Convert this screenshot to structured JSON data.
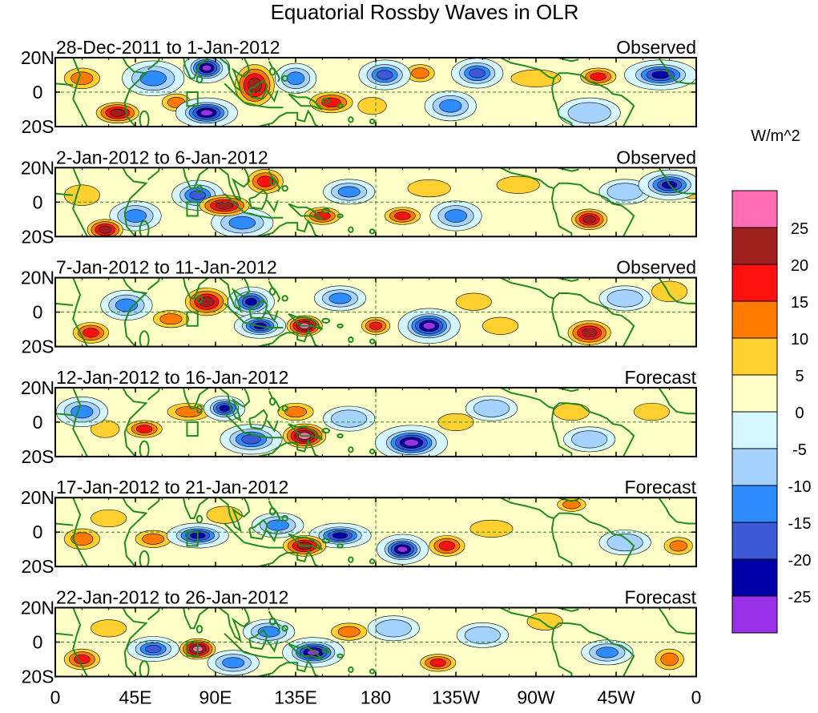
{
  "chart_data": {
    "type": "heatmap",
    "title": "Equatorial Rossby Waves in OLR",
    "colorbar": {
      "units": "W/m^2",
      "levels": [
        30,
        25,
        20,
        15,
        10,
        5,
        0,
        -5,
        -10,
        -15,
        -20,
        -25,
        -30
      ],
      "colors": [
        "#ff6eb4",
        "#a02020",
        "#ff1010",
        "#ff7a00",
        "#ffd030",
        "#ffffc8",
        "#d4f6ff",
        "#a6d2ff",
        "#2e8cff",
        "#3c5ad8",
        "#0000a8",
        "#9a30e8"
      ],
      "tick_labels": [
        "25",
        "20",
        "15",
        "10",
        "5",
        "0",
        "-5",
        "-10",
        "-15",
        "-20",
        "-25"
      ]
    },
    "x_ticks": [
      "0",
      "45E",
      "90E",
      "135E",
      "180",
      "135W",
      "90W",
      "45W",
      "0"
    ],
    "x_tick_values": [
      0,
      45,
      90,
      135,
      180,
      225,
      270,
      315,
      360
    ],
    "y_ticks": [
      "20N",
      "0",
      "20S"
    ],
    "y_tick_values": [
      20,
      0,
      -20
    ],
    "xlim": [
      0,
      360
    ],
    "ylim": [
      -20,
      20
    ],
    "panels": [
      {
        "period": "28-Dec-2011 to 1-Jan-2012",
        "kind": "Observed",
        "anomalies": [
          {
            "lon": 35,
            "lat": -12,
            "v": 22,
            "dx": 12,
            "dy": 6
          },
          {
            "lon": 15,
            "lat": 8,
            "v": 12,
            "dx": 10,
            "dy": 6
          },
          {
            "lon": 55,
            "lat": 8,
            "v": -12,
            "dx": 12,
            "dy": 7
          },
          {
            "lon": 68,
            "lat": -6,
            "v": 10,
            "dx": 8,
            "dy": 5
          },
          {
            "lon": 85,
            "lat": 14,
            "v": -26,
            "dx": 9,
            "dy": 6
          },
          {
            "lon": 85,
            "lat": -12,
            "v": -26,
            "dx": 12,
            "dy": 6
          },
          {
            "lon": 112,
            "lat": 4,
            "v": 22,
            "dx": 11,
            "dy": 12
          },
          {
            "lon": 135,
            "lat": 8,
            "v": -14,
            "dx": 8,
            "dy": 6
          },
          {
            "lon": 155,
            "lat": -6,
            "v": 18,
            "dx": 12,
            "dy": 6
          },
          {
            "lon": 178,
            "lat": -8,
            "v": 8,
            "dx": 8,
            "dy": 5
          },
          {
            "lon": 185,
            "lat": 10,
            "v": -18,
            "dx": 10,
            "dy": 6
          },
          {
            "lon": 205,
            "lat": 11,
            "v": 10,
            "dx": 8,
            "dy": 5
          },
          {
            "lon": 222,
            "lat": -8,
            "v": -12,
            "dx": 10,
            "dy": 6
          },
          {
            "lon": 237,
            "lat": 11,
            "v": -18,
            "dx": 10,
            "dy": 6
          },
          {
            "lon": 270,
            "lat": 8,
            "v": 6,
            "dx": 14,
            "dy": 5
          },
          {
            "lon": 305,
            "lat": 9,
            "v": 15,
            "dx": 10,
            "dy": 5
          },
          {
            "lon": 340,
            "lat": 10,
            "v": -22,
            "dx": 14,
            "dy": 6
          },
          {
            "lon": 300,
            "lat": -12,
            "v": -8,
            "dx": 12,
            "dy": 6
          }
        ]
      },
      {
        "period": "2-Jan-2012 to 6-Jan-2012",
        "kind": "Observed",
        "anomalies": [
          {
            "lon": 28,
            "lat": -16,
            "v": 24,
            "dx": 10,
            "dy": 6
          },
          {
            "lon": 15,
            "lat": 4,
            "v": 8,
            "dx": 10,
            "dy": 6
          },
          {
            "lon": 45,
            "lat": -8,
            "v": -14,
            "dx": 10,
            "dy": 6
          },
          {
            "lon": 80,
            "lat": 4,
            "v": -18,
            "dx": 10,
            "dy": 6
          },
          {
            "lon": 95,
            "lat": -2,
            "v": 20,
            "dx": 14,
            "dy": 6
          },
          {
            "lon": 118,
            "lat": 12,
            "v": 18,
            "dx": 10,
            "dy": 7
          },
          {
            "lon": 105,
            "lat": -12,
            "v": -12,
            "dx": 12,
            "dy": 6
          },
          {
            "lon": 150,
            "lat": -8,
            "v": 15,
            "dx": 10,
            "dy": 5
          },
          {
            "lon": 165,
            "lat": 6,
            "v": -10,
            "dx": 10,
            "dy": 5
          },
          {
            "lon": 195,
            "lat": -8,
            "v": 18,
            "dx": 10,
            "dy": 5
          },
          {
            "lon": 225,
            "lat": -8,
            "v": -14,
            "dx": 10,
            "dy": 6
          },
          {
            "lon": 210,
            "lat": 8,
            "v": 8,
            "dx": 12,
            "dy": 5
          },
          {
            "lon": 260,
            "lat": 10,
            "v": 5,
            "dx": 12,
            "dy": 5
          },
          {
            "lon": 300,
            "lat": -10,
            "v": 20,
            "dx": 10,
            "dy": 6
          },
          {
            "lon": 320,
            "lat": 6,
            "v": -8,
            "dx": 10,
            "dy": 5
          },
          {
            "lon": 345,
            "lat": 10,
            "v": -22,
            "dx": 12,
            "dy": 6
          },
          {
            "lon": 358,
            "lat": 8,
            "v": 12,
            "dx": 8,
            "dy": 6
          }
        ]
      },
      {
        "period": "7-Jan-2012 to 11-Jan-2012",
        "kind": "Observed",
        "anomalies": [
          {
            "lon": 20,
            "lat": -12,
            "v": 16,
            "dx": 10,
            "dy": 6
          },
          {
            "lon": 40,
            "lat": 4,
            "v": -12,
            "dx": 10,
            "dy": 6
          },
          {
            "lon": 65,
            "lat": -4,
            "v": 14,
            "dx": 10,
            "dy": 5
          },
          {
            "lon": 85,
            "lat": 6,
            "v": 22,
            "dx": 12,
            "dy": 8
          },
          {
            "lon": 110,
            "lat": 6,
            "v": -22,
            "dx": 9,
            "dy": 6
          },
          {
            "lon": 115,
            "lat": -8,
            "v": -22,
            "dx": 10,
            "dy": 5
          },
          {
            "lon": 140,
            "lat": -8,
            "v": 26,
            "dx": 10,
            "dy": 6
          },
          {
            "lon": 160,
            "lat": 8,
            "v": -10,
            "dx": 10,
            "dy": 5
          },
          {
            "lon": 180,
            "lat": -8,
            "v": 16,
            "dx": 8,
            "dy": 5
          },
          {
            "lon": 210,
            "lat": -8,
            "v": -26,
            "dx": 12,
            "dy": 7
          },
          {
            "lon": 235,
            "lat": 6,
            "v": 8,
            "dx": 10,
            "dy": 5
          },
          {
            "lon": 250,
            "lat": -8,
            "v": 6,
            "dx": 10,
            "dy": 5
          },
          {
            "lon": 300,
            "lat": -12,
            "v": 22,
            "dx": 12,
            "dy": 7
          },
          {
            "lon": 320,
            "lat": 8,
            "v": -8,
            "dx": 10,
            "dy": 5
          },
          {
            "lon": 345,
            "lat": 12,
            "v": 8,
            "dx": 10,
            "dy": 6
          }
        ]
      },
      {
        "period": "12-Jan-2012 to 16-Jan-2012",
        "kind": "Forecast",
        "anomalies": [
          {
            "lon": 15,
            "lat": 6,
            "v": -12,
            "dx": 10,
            "dy": 6
          },
          {
            "lon": 28,
            "lat": -4,
            "v": 6,
            "dx": 8,
            "dy": 5
          },
          {
            "lon": 50,
            "lat": -4,
            "v": 18,
            "dx": 10,
            "dy": 5
          },
          {
            "lon": 75,
            "lat": 6,
            "v": 12,
            "dx": 12,
            "dy": 5
          },
          {
            "lon": 95,
            "lat": 8,
            "v": -24,
            "dx": 8,
            "dy": 5
          },
          {
            "lon": 110,
            "lat": -10,
            "v": -16,
            "dx": 12,
            "dy": 6
          },
          {
            "lon": 140,
            "lat": -8,
            "v": 26,
            "dx": 12,
            "dy": 7
          },
          {
            "lon": 135,
            "lat": 6,
            "v": 10,
            "dx": 10,
            "dy": 5
          },
          {
            "lon": 165,
            "lat": 2,
            "v": -8,
            "dx": 10,
            "dy": 5
          },
          {
            "lon": 200,
            "lat": -12,
            "v": -26,
            "dx": 14,
            "dy": 7
          },
          {
            "lon": 225,
            "lat": 0,
            "v": 6,
            "dx": 10,
            "dy": 5
          },
          {
            "lon": 245,
            "lat": 8,
            "v": -8,
            "dx": 10,
            "dy": 5
          },
          {
            "lon": 290,
            "lat": 6,
            "v": 6,
            "dx": 10,
            "dy": 5
          },
          {
            "lon": 300,
            "lat": -10,
            "v": -6,
            "dx": 10,
            "dy": 5
          },
          {
            "lon": 335,
            "lat": 6,
            "v": 6,
            "dx": 10,
            "dy": 5
          }
        ]
      },
      {
        "period": "17-Jan-2012 to 21-Jan-2012",
        "kind": "Forecast",
        "anomalies": [
          {
            "lon": 15,
            "lat": -4,
            "v": 12,
            "dx": 10,
            "dy": 6
          },
          {
            "lon": 30,
            "lat": 8,
            "v": 6,
            "dx": 10,
            "dy": 5
          },
          {
            "lon": 55,
            "lat": -4,
            "v": 10,
            "dx": 10,
            "dy": 5
          },
          {
            "lon": 80,
            "lat": -2,
            "v": -24,
            "dx": 12,
            "dy": 5
          },
          {
            "lon": 95,
            "lat": 10,
            "v": 8,
            "dx": 10,
            "dy": 5
          },
          {
            "lon": 125,
            "lat": 4,
            "v": -10,
            "dx": 10,
            "dy": 5
          },
          {
            "lon": 140,
            "lat": -8,
            "v": 24,
            "dx": 12,
            "dy": 6
          },
          {
            "lon": 160,
            "lat": -2,
            "v": -22,
            "dx": 12,
            "dy": 5
          },
          {
            "lon": 195,
            "lat": -10,
            "v": -26,
            "dx": 10,
            "dy": 6
          },
          {
            "lon": 220,
            "lat": -8,
            "v": 18,
            "dx": 10,
            "dy": 6
          },
          {
            "lon": 245,
            "lat": 2,
            "v": 6,
            "dx": 12,
            "dy": 5
          },
          {
            "lon": 290,
            "lat": 16,
            "v": 14,
            "dx": 8,
            "dy": 4
          },
          {
            "lon": 320,
            "lat": -6,
            "v": -8,
            "dx": 10,
            "dy": 5
          },
          {
            "lon": 350,
            "lat": -8,
            "v": 12,
            "dx": 8,
            "dy": 5
          }
        ]
      },
      {
        "period": "22-Jan-2012 to 26-Jan-2012",
        "kind": "Forecast",
        "anomalies": [
          {
            "lon": 15,
            "lat": -10,
            "v": 16,
            "dx": 10,
            "dy": 6
          },
          {
            "lon": 30,
            "lat": 8,
            "v": 8,
            "dx": 10,
            "dy": 5
          },
          {
            "lon": 55,
            "lat": -4,
            "v": -16,
            "dx": 10,
            "dy": 5
          },
          {
            "lon": 80,
            "lat": -4,
            "v": 26,
            "dx": 10,
            "dy": 6
          },
          {
            "lon": 100,
            "lat": -12,
            "v": -12,
            "dx": 10,
            "dy": 5
          },
          {
            "lon": 120,
            "lat": 6,
            "v": -10,
            "dx": 10,
            "dy": 5
          },
          {
            "lon": 145,
            "lat": -6,
            "v": -26,
            "dx": 12,
            "dy": 6
          },
          {
            "lon": 165,
            "lat": 6,
            "v": 10,
            "dx": 10,
            "dy": 5
          },
          {
            "lon": 190,
            "lat": 8,
            "v": -8,
            "dx": 10,
            "dy": 5
          },
          {
            "lon": 215,
            "lat": -12,
            "v": 18,
            "dx": 10,
            "dy": 5
          },
          {
            "lon": 240,
            "lat": 4,
            "v": -6,
            "dx": 10,
            "dy": 5
          },
          {
            "lon": 275,
            "lat": 12,
            "v": 6,
            "dx": 10,
            "dy": 5
          },
          {
            "lon": 310,
            "lat": -6,
            "v": -12,
            "dx": 10,
            "dy": 5
          },
          {
            "lon": 345,
            "lat": -10,
            "v": 12,
            "dx": 8,
            "dy": 6
          }
        ]
      }
    ]
  }
}
